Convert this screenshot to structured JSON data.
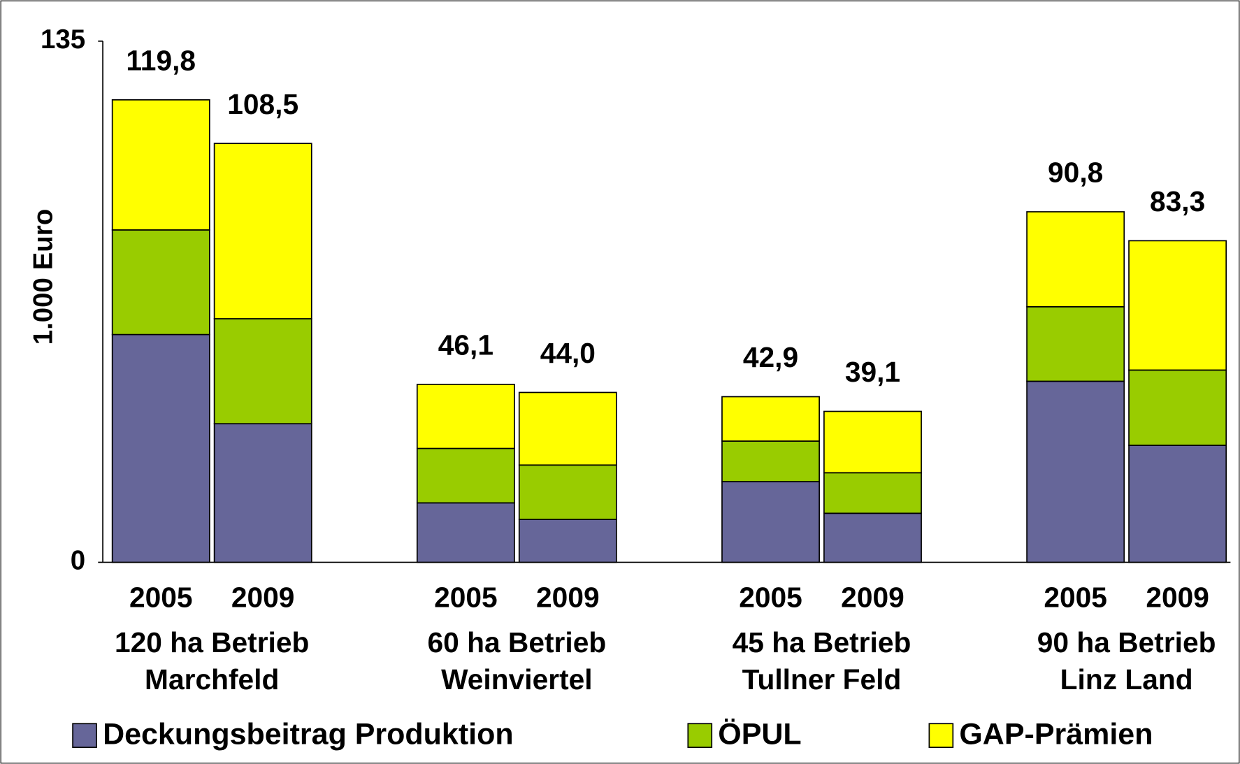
{
  "chart_data": {
    "type": "stacked_bar",
    "y_label": "1.000 Euro",
    "categories": [
      "2005",
      "2009",
      "2005",
      "2009",
      "2005",
      "2009",
      "2005",
      "2009"
    ],
    "group_labels": [
      [
        "120 ha Betrieb",
        "Marchfeld"
      ],
      [
        "60 ha Betrieb",
        "Weinviertel"
      ],
      [
        "45 ha Betrieb",
        "Tullner Feld"
      ],
      [
        "90 ha Betrieb",
        "Linz Land"
      ]
    ],
    "series": [
      {
        "name": "Deckungsbeitrag Produktion",
        "color": "#666699",
        "values": [
          59.0,
          35.9,
          15.4,
          11.1,
          20.9,
          12.7,
          46.9,
          30.3
        ]
      },
      {
        "name": "ÖPUL",
        "color": "#99cc00",
        "values": [
          27.1,
          27.2,
          14.1,
          14.1,
          10.5,
          10.5,
          19.3,
          19.5
        ]
      },
      {
        "name": "GAP-Prämien",
        "color": "#ffff00",
        "values": [
          33.7,
          45.4,
          16.6,
          18.8,
          11.5,
          15.9,
          24.6,
          33.5
        ]
      }
    ],
    "totals": [
      119.8,
      108.5,
      46.1,
      44.0,
      42.9,
      39.1,
      90.8,
      83.3
    ],
    "total_labels": [
      "119,8",
      "108,5",
      "46,1",
      "44,0",
      "42,9",
      "39,1",
      "90,8",
      "83,3"
    ],
    "ylim": [
      0,
      135
    ],
    "yticks": [
      0,
      135
    ],
    "grid": false
  }
}
